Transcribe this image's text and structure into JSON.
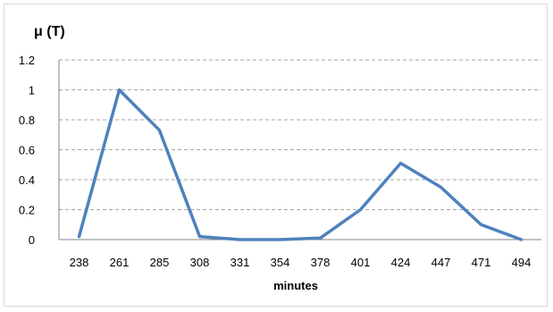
{
  "chart_data": {
    "type": "line",
    "title": "",
    "ylabel": "μ (T)",
    "xlabel": "minutes",
    "categories": [
      "238",
      "261",
      "285",
      "308",
      "331",
      "354",
      "378",
      "401",
      "424",
      "447",
      "471",
      "494"
    ],
    "series": [
      {
        "color": "#4f81bd",
        "values": [
          0.02,
          1.0,
          0.73,
          0.02,
          0.0,
          0.0,
          0.01,
          0.2,
          0.51,
          0.35,
          0.1,
          0.0
        ]
      }
    ],
    "ylim": [
      0,
      1.2
    ],
    "yticks": [
      "0",
      "0.2",
      "0.4",
      "0.6",
      "0.8",
      "1",
      "1.2"
    ],
    "grid": "horizontal-dashed",
    "legend": "none"
  }
}
